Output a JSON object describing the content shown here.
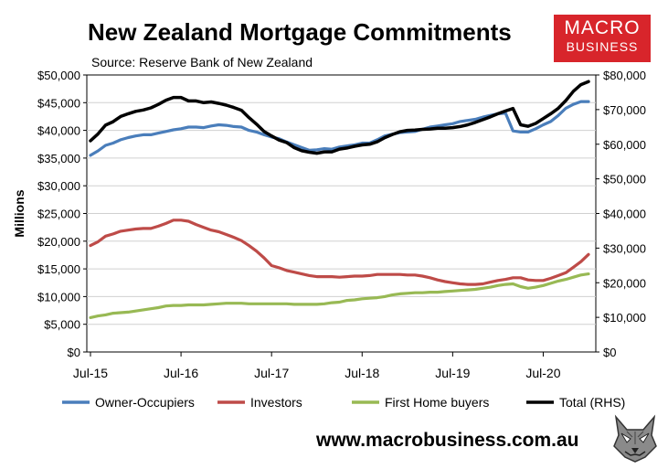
{
  "header": {
    "title": "New Zealand Mortgage Commitments",
    "subtitle": "Source: Reserve Bank of New Zealand"
  },
  "logo": {
    "line1": "MACRO",
    "line2": "BUSINESS",
    "color": "#d8252b"
  },
  "footer": {
    "url": "www.macrobusiness.com.au"
  },
  "chart_data": {
    "type": "line",
    "ylabel": "Millions",
    "ylim": [
      0,
      50000
    ],
    "y2lim": [
      0,
      80000
    ],
    "y_ticks": [
      "$0",
      "$5,000",
      "$10,000",
      "$15,000",
      "$20,000",
      "$25,000",
      "$30,000",
      "$35,000",
      "$40,000",
      "$45,000",
      "$50,000"
    ],
    "y2_ticks": [
      "$0",
      "$10,000",
      "$20,000",
      "$30,000",
      "$40,000",
      "$50,000",
      "$60,000",
      "$70,000",
      "$80,000"
    ],
    "x_ticks": [
      "Jul-15",
      "Jul-16",
      "Jul-17",
      "Jul-18",
      "Jul-19",
      "Jul-20"
    ],
    "x": [
      "Jul-15",
      "Aug-15",
      "Sep-15",
      "Oct-15",
      "Nov-15",
      "Dec-15",
      "Jan-16",
      "Feb-16",
      "Mar-16",
      "Apr-16",
      "May-16",
      "Jun-16",
      "Jul-16",
      "Aug-16",
      "Sep-16",
      "Oct-16",
      "Nov-16",
      "Dec-16",
      "Jan-17",
      "Feb-17",
      "Mar-17",
      "Apr-17",
      "May-17",
      "Jun-17",
      "Jul-17",
      "Aug-17",
      "Sep-17",
      "Oct-17",
      "Nov-17",
      "Dec-17",
      "Jan-18",
      "Feb-18",
      "Mar-18",
      "Apr-18",
      "May-18",
      "Jun-18",
      "Jul-18",
      "Aug-18",
      "Sep-18",
      "Oct-18",
      "Nov-18",
      "Dec-18",
      "Jan-19",
      "Feb-19",
      "Mar-19",
      "Apr-19",
      "May-19",
      "Jun-19",
      "Jul-19",
      "Aug-19",
      "Sep-19",
      "Oct-19",
      "Nov-19",
      "Dec-19",
      "Jan-20",
      "Feb-20",
      "Mar-20",
      "Apr-20",
      "May-20",
      "Jun-20",
      "Jul-20",
      "Aug-20",
      "Sep-20",
      "Oct-20",
      "Nov-20",
      "Dec-20",
      "Jan-21"
    ],
    "grid": true,
    "legend_position": "bottom",
    "series": [
      {
        "name": "Owner-Occupiers",
        "axis": "left",
        "color": "#4a7ebb",
        "values": [
          35500,
          36300,
          37300,
          37700,
          38300,
          38700,
          39000,
          39200,
          39200,
          39500,
          39800,
          40100,
          40300,
          40600,
          40600,
          40500,
          40800,
          41000,
          40900,
          40700,
          40600,
          40000,
          39700,
          39200,
          38800,
          38500,
          37900,
          37400,
          36900,
          36400,
          36500,
          36700,
          36600,
          37000,
          37200,
          37400,
          37700,
          37700,
          38300,
          39000,
          39300,
          39600,
          39700,
          39800,
          40200,
          40600,
          40800,
          41000,
          41200,
          41600,
          41800,
          42000,
          42400,
          42700,
          43000,
          43100,
          39900,
          39700,
          39700,
          40300,
          41000,
          41600,
          42700,
          44000,
          44700,
          45200,
          45200
        ]
      },
      {
        "name": "Investors",
        "axis": "left",
        "color": "#be4b48",
        "values": [
          19200,
          19900,
          20900,
          21300,
          21800,
          22000,
          22200,
          22300,
          22300,
          22700,
          23200,
          23800,
          23800,
          23600,
          23000,
          22500,
          22000,
          21700,
          21200,
          20700,
          20100,
          19200,
          18200,
          17000,
          15600,
          15200,
          14700,
          14400,
          14100,
          13800,
          13600,
          13600,
          13600,
          13500,
          13600,
          13700,
          13700,
          13800,
          14000,
          14000,
          14000,
          14000,
          13900,
          13900,
          13700,
          13400,
          13000,
          12700,
          12500,
          12300,
          12200,
          12200,
          12300,
          12600,
          12900,
          13100,
          13400,
          13400,
          13000,
          12900,
          12900,
          13300,
          13800,
          14300,
          15300,
          16300,
          17600
        ]
      },
      {
        "name": "First Home buyers",
        "axis": "left",
        "color": "#98b954",
        "values": [
          6200,
          6500,
          6700,
          7000,
          7100,
          7200,
          7400,
          7600,
          7800,
          8000,
          8300,
          8400,
          8400,
          8500,
          8500,
          8500,
          8600,
          8700,
          8800,
          8800,
          8800,
          8700,
          8700,
          8700,
          8700,
          8700,
          8700,
          8600,
          8600,
          8600,
          8600,
          8700,
          8900,
          9000,
          9300,
          9400,
          9600,
          9700,
          9800,
          10000,
          10300,
          10500,
          10600,
          10700,
          10700,
          10800,
          10800,
          10900,
          11000,
          11100,
          11200,
          11300,
          11500,
          11700,
          12000,
          12200,
          12300,
          11800,
          11500,
          11700,
          12000,
          12400,
          12800,
          13100,
          13500,
          13900,
          14100
        ]
      },
      {
        "name": "Total (RHS)",
        "axis": "right",
        "color": "#000000",
        "values": [
          61000,
          63000,
          65500,
          66500,
          68000,
          68800,
          69500,
          69900,
          70500,
          71500,
          72700,
          73500,
          73500,
          72500,
          72500,
          72000,
          72200,
          71800,
          71300,
          70600,
          69800,
          67700,
          65800,
          63700,
          62400,
          61200,
          60500,
          59000,
          58100,
          57700,
          57400,
          57800,
          57800,
          58600,
          58900,
          59400,
          59800,
          60000,
          60700,
          61900,
          62800,
          63600,
          64000,
          64100,
          64300,
          64400,
          64600,
          64600,
          64800,
          65100,
          65600,
          66300,
          67100,
          67900,
          68800,
          69600,
          70300,
          65600,
          65200,
          66000,
          67400,
          68800,
          70400,
          72600,
          75300,
          77200,
          78100
        ]
      }
    ]
  }
}
